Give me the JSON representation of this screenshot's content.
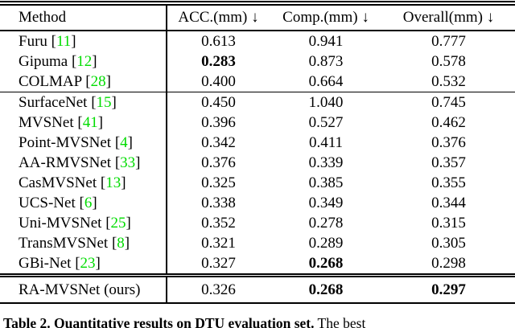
{
  "table": {
    "headers": [
      {
        "label": "Method"
      },
      {
        "label": "ACC.(mm) ↓"
      },
      {
        "label": "Comp.(mm) ↓"
      },
      {
        "label": "Overall(mm) ↓"
      }
    ],
    "groups": [
      [
        {
          "method": "Furu",
          "ref": "11",
          "values": [
            "0.613",
            "0.941",
            "0.777"
          ],
          "bold": [
            false,
            false,
            false
          ]
        },
        {
          "method": "Gipuma",
          "ref": "12",
          "values": [
            "0.283",
            "0.873",
            "0.578"
          ],
          "bold": [
            true,
            false,
            false
          ]
        },
        {
          "method": "COLMAP",
          "ref": "28",
          "values": [
            "0.400",
            "0.664",
            "0.532"
          ],
          "bold": [
            false,
            false,
            false
          ]
        }
      ],
      [
        {
          "method": "SurfaceNet",
          "ref": "15",
          "values": [
            "0.450",
            "1.040",
            "0.745"
          ],
          "bold": [
            false,
            false,
            false
          ]
        },
        {
          "method": "MVSNet",
          "ref": "41",
          "values": [
            "0.396",
            "0.527",
            "0.462"
          ],
          "bold": [
            false,
            false,
            false
          ]
        },
        {
          "method": "Point-MVSNet",
          "ref": "4",
          "values": [
            "0.342",
            "0.411",
            "0.376"
          ],
          "bold": [
            false,
            false,
            false
          ]
        },
        {
          "method": "AA-RMVSNet",
          "ref": "33",
          "values": [
            "0.376",
            "0.339",
            "0.357"
          ],
          "bold": [
            false,
            false,
            false
          ]
        },
        {
          "method": "CasMVSNet",
          "ref": "13",
          "values": [
            "0.325",
            "0.385",
            "0.355"
          ],
          "bold": [
            false,
            false,
            false
          ]
        },
        {
          "method": "UCS-Net",
          "ref": "6",
          "values": [
            "0.338",
            "0.349",
            "0.344"
          ],
          "bold": [
            false,
            false,
            false
          ]
        },
        {
          "method": "Uni-MVSNet",
          "ref": "25",
          "values": [
            "0.352",
            "0.278",
            "0.315"
          ],
          "bold": [
            false,
            false,
            false
          ]
        },
        {
          "method": "TransMVSNet",
          "ref": "8",
          "values": [
            "0.321",
            "0.289",
            "0.305"
          ],
          "bold": [
            false,
            false,
            false
          ]
        },
        {
          "method": "GBi-Net",
          "ref": "23",
          "values": [
            "0.327",
            "0.268",
            "0.298"
          ],
          "bold": [
            false,
            true,
            false
          ]
        }
      ],
      [
        {
          "method": "RA-MVSNet (ours)",
          "ref": null,
          "values": [
            "0.326",
            "0.268",
            "0.297"
          ],
          "bold": [
            false,
            true,
            true
          ]
        }
      ]
    ]
  },
  "caption": {
    "bold_part": "Table 2. Quantitative results on DTU evaluation set.",
    "rest_part": " The best"
  },
  "colors": {
    "citation_green": "#00dc00"
  }
}
